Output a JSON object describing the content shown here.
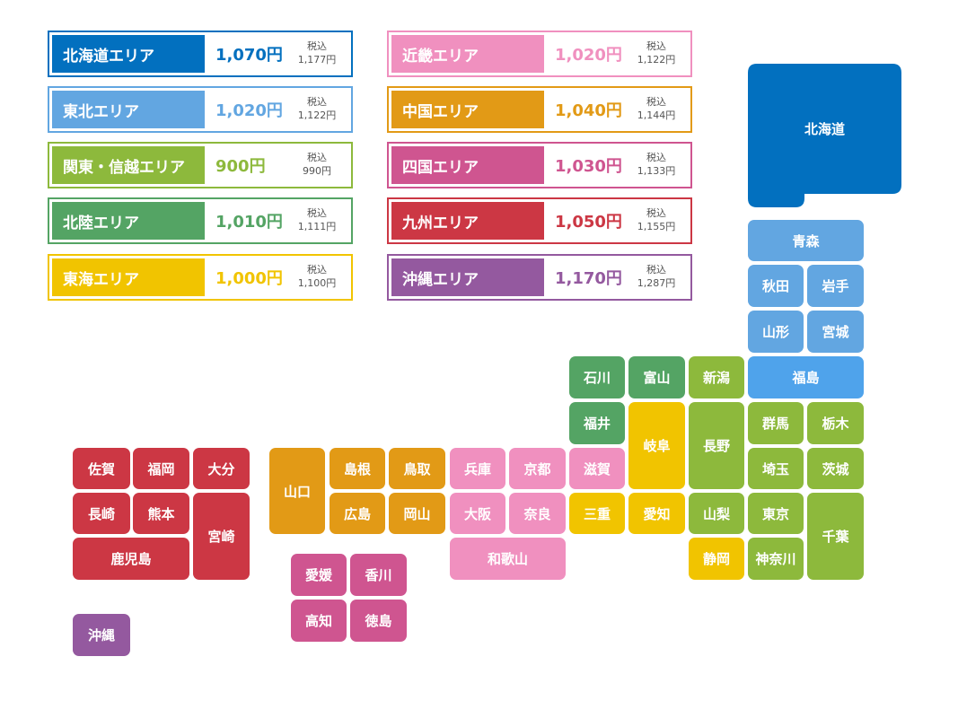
{
  "colors": {
    "hokkaido": "#0270BF",
    "tohoku": "#62A6E1",
    "kanto": "#8DB93C",
    "hokuriku": "#54A464",
    "tokai": "#F1C400",
    "kinki": "#F090BF",
    "chugoku": "#E29A16",
    "shikoku": "#CF5590",
    "kyushu": "#CC3744",
    "okinawa": "#94599F",
    "fukushima": "#4FA3EB"
  },
  "legend": [
    {
      "name": "北海道エリア",
      "price": "1,070円",
      "tax_label": "税込",
      "tax_price": "1,177円",
      "area": "hokkaido"
    },
    {
      "name": "東北エリア",
      "price": "1,020円",
      "tax_label": "税込",
      "tax_price": "1,122円",
      "area": "tohoku"
    },
    {
      "name": "関東・信越エリア",
      "price": "900円",
      "tax_label": "税込",
      "tax_price": "990円",
      "area": "kanto"
    },
    {
      "name": "北陸エリア",
      "price": "1,010円",
      "tax_label": "税込",
      "tax_price": "1,111円",
      "area": "hokuriku"
    },
    {
      "name": "東海エリア",
      "price": "1,000円",
      "tax_label": "税込",
      "tax_price": "1,100円",
      "area": "tokai"
    },
    {
      "name": "近畿エリア",
      "price": "1,020円",
      "tax_label": "税込",
      "tax_price": "1,122円",
      "area": "kinki"
    },
    {
      "name": "中国エリア",
      "price": "1,040円",
      "tax_label": "税込",
      "tax_price": "1,144円",
      "area": "chugoku"
    },
    {
      "name": "四国エリア",
      "price": "1,030円",
      "tax_label": "税込",
      "tax_price": "1,133円",
      "area": "shikoku"
    },
    {
      "name": "九州エリア",
      "price": "1,050円",
      "tax_label": "税込",
      "tax_price": "1,155円",
      "area": "kyushu"
    },
    {
      "name": "沖縄エリア",
      "price": "1,170円",
      "tax_label": "税込",
      "tax_price": "1,287円",
      "area": "okinawa"
    }
  ],
  "prefectures": [
    {
      "name": "北海道",
      "area": "hokkaido"
    },
    {
      "name": "青森",
      "area": "tohoku"
    },
    {
      "name": "秋田",
      "area": "tohoku"
    },
    {
      "name": "岩手",
      "area": "tohoku"
    },
    {
      "name": "山形",
      "area": "tohoku"
    },
    {
      "name": "宮城",
      "area": "tohoku"
    },
    {
      "name": "福島",
      "area": "fukushima"
    },
    {
      "name": "石川",
      "area": "hokuriku"
    },
    {
      "name": "富山",
      "area": "hokuriku"
    },
    {
      "name": "福井",
      "area": "hokuriku"
    },
    {
      "name": "新潟",
      "area": "kanto"
    },
    {
      "name": "長野",
      "area": "kanto"
    },
    {
      "name": "群馬",
      "area": "kanto"
    },
    {
      "name": "栃木",
      "area": "kanto"
    },
    {
      "name": "埼玉",
      "area": "kanto"
    },
    {
      "name": "茨城",
      "area": "kanto"
    },
    {
      "name": "山梨",
      "area": "kanto"
    },
    {
      "name": "東京",
      "area": "kanto"
    },
    {
      "name": "千葉",
      "area": "kanto"
    },
    {
      "name": "神奈川",
      "area": "kanto"
    },
    {
      "name": "岐阜",
      "area": "tokai"
    },
    {
      "name": "愛知",
      "area": "tokai"
    },
    {
      "name": "三重",
      "area": "tokai"
    },
    {
      "name": "静岡",
      "area": "tokai"
    },
    {
      "name": "滋賀",
      "area": "kinki"
    },
    {
      "name": "兵庫",
      "area": "kinki"
    },
    {
      "name": "京都",
      "area": "kinki"
    },
    {
      "name": "大阪",
      "area": "kinki"
    },
    {
      "name": "奈良",
      "area": "kinki"
    },
    {
      "name": "和歌山",
      "area": "kinki"
    },
    {
      "name": "山口",
      "area": "chugoku"
    },
    {
      "name": "島根",
      "area": "chugoku"
    },
    {
      "name": "鳥取",
      "area": "chugoku"
    },
    {
      "name": "広島",
      "area": "chugoku"
    },
    {
      "name": "岡山",
      "area": "chugoku"
    },
    {
      "name": "愛媛",
      "area": "shikoku"
    },
    {
      "name": "香川",
      "area": "shikoku"
    },
    {
      "name": "高知",
      "area": "shikoku"
    },
    {
      "name": "徳島",
      "area": "shikoku"
    },
    {
      "name": "佐賀",
      "area": "kyushu"
    },
    {
      "name": "福岡",
      "area": "kyushu"
    },
    {
      "name": "大分",
      "area": "kyushu"
    },
    {
      "name": "長崎",
      "area": "kyushu"
    },
    {
      "name": "熊本",
      "area": "kyushu"
    },
    {
      "name": "宮崎",
      "area": "kyushu"
    },
    {
      "name": "鹿児島",
      "area": "kyushu"
    },
    {
      "name": "沖縄",
      "area": "okinawa"
    }
  ]
}
